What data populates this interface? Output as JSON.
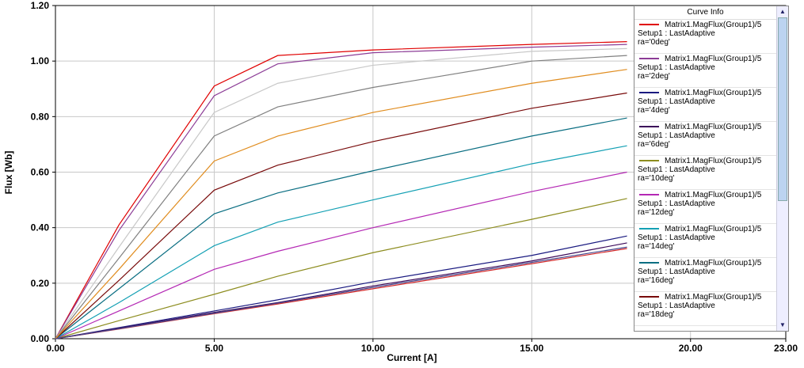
{
  "chart_data": {
    "type": "line",
    "x_label": "Current [A]",
    "y_label": "Flux [Wb]",
    "legend_title": "Curve Info",
    "x": [
      0,
      2,
      5,
      7,
      10,
      15,
      18
    ],
    "xlim": [
      0,
      23
    ],
    "ylim": [
      0,
      1.2
    ],
    "xticks": [
      {
        "value": 0,
        "label": "0.00"
      },
      {
        "value": 5,
        "label": "5.00"
      },
      {
        "value": 10,
        "label": "10.00"
      },
      {
        "value": 15,
        "label": "15.00"
      },
      {
        "value": 20,
        "label": "20.00"
      },
      {
        "value": 23,
        "label": "23.00"
      }
    ],
    "yticks": [
      {
        "value": 0,
        "label": "0.00"
      },
      {
        "value": 0.2,
        "label": "0.20"
      },
      {
        "value": 0.4,
        "label": "0.40"
      },
      {
        "value": 0.6,
        "label": "0.60"
      },
      {
        "value": 0.8,
        "label": "0.80"
      },
      {
        "value": 1.0,
        "label": "1.00"
      },
      {
        "value": 1.2,
        "label": "1.20"
      }
    ],
    "grid": true,
    "series": [
      {
        "name": "Matrix1.MagFlux(Group1)/5\nSetup1 : LastAdaptive\nra='0deg'",
        "color": "#e00000",
        "values": [
          0,
          0.41,
          0.91,
          1.02,
          1.04,
          1.06,
          1.07
        ]
      },
      {
        "name": "Matrix1.MagFlux(Group1)/5\nSetup1 : LastAdaptive\nra='2deg'",
        "color": "#8c3c96",
        "values": [
          0,
          0.39,
          0.875,
          0.99,
          1.03,
          1.05,
          1.06
        ]
      },
      {
        "name": "Matrix1.MagFlux(Group1)/5\nSetup1 : LastAdaptive\nra='4deg'",
        "color": "#1a1a80",
        "values": [
          0,
          0.04,
          0.1,
          0.14,
          0.205,
          0.3,
          0.37
        ]
      },
      {
        "name": "Matrix1.MagFlux(Group1)/5\nSetup1 : LastAdaptive\nra='6deg'",
        "color": "#3c0a5a",
        "values": [
          0,
          0.038,
          0.095,
          0.13,
          0.19,
          0.28,
          0.345
        ]
      },
      {
        "name": "Matrix1.MagFlux(Group1)/5\nSetup1 : LastAdaptive\nra='10deg'",
        "color": "#8c8c1e",
        "values": [
          0,
          0.065,
          0.16,
          0.225,
          0.31,
          0.43,
          0.505
        ]
      },
      {
        "name": "Matrix1.MagFlux(Group1)/5\nSetup1 : LastAdaptive\nra='12deg'",
        "color": "#b428b4",
        "values": [
          0,
          0.1,
          0.25,
          0.315,
          0.4,
          0.53,
          0.6
        ]
      },
      {
        "name": "Matrix1.MagFlux(Group1)/5\nSetup1 : LastAdaptive\nra='14deg'",
        "color": "#14a0b4",
        "values": [
          0,
          0.13,
          0.335,
          0.42,
          0.5,
          0.63,
          0.695
        ]
      },
      {
        "name": "Matrix1.MagFlux(Group1)/5\nSetup1 : LastAdaptive\nra='16deg'",
        "color": "#0a6e82",
        "values": [
          0,
          0.18,
          0.45,
          0.525,
          0.605,
          0.73,
          0.795
        ]
      },
      {
        "name": "Matrix1.MagFlux(Group1)/5\nSetup1 : LastAdaptive\nra='18deg'",
        "color": "#780a0a",
        "values": [
          0,
          0.21,
          0.535,
          0.625,
          0.71,
          0.83,
          0.885
        ]
      },
      {
        "color": "#c8c8c8",
        "values": [
          0,
          0.33,
          0.815,
          0.92,
          0.985,
          1.035,
          1.045
        ]
      },
      {
        "color": "#808080",
        "values": [
          0,
          0.29,
          0.73,
          0.835,
          0.905,
          1.0,
          1.02
        ]
      },
      {
        "color": "#e08c1e",
        "values": [
          0,
          0.25,
          0.64,
          0.73,
          0.815,
          0.92,
          0.97
        ]
      },
      {
        "color": "#d22828",
        "values": [
          0,
          0.035,
          0.09,
          0.125,
          0.18,
          0.27,
          0.325
        ]
      },
      {
        "color": "#46468c",
        "values": [
          0,
          0.036,
          0.092,
          0.128,
          0.185,
          0.275,
          0.33
        ]
      }
    ]
  }
}
